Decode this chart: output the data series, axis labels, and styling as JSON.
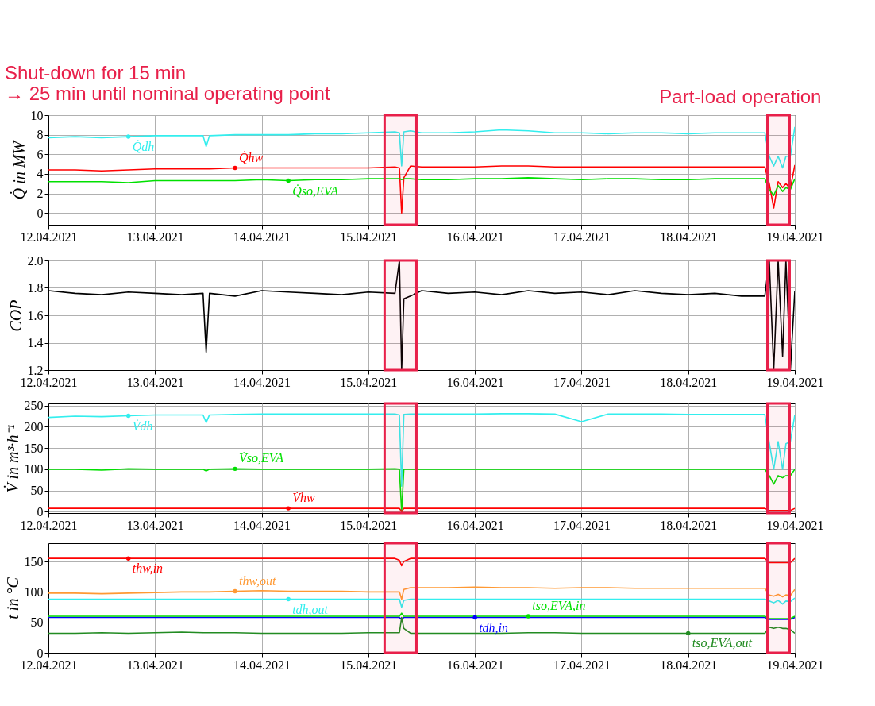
{
  "chart_data": [
    {
      "type": "line",
      "ylabel": "Q̇ in MW",
      "grid": true,
      "x": [
        "2021-04-12T00:00",
        "2021-04-12T06:00",
        "2021-04-12T12:00",
        "2021-04-12T18:00",
        "2021-04-13T00:00",
        "2021-04-13T06:00",
        "2021-04-13T10:48",
        "2021-04-13T11:30",
        "2021-04-13T12:15",
        "2021-04-13T18:00",
        "2021-04-14T00:00",
        "2021-04-14T06:00",
        "2021-04-14T12:00",
        "2021-04-14T18:00",
        "2021-04-15T00:00",
        "2021-04-15T06:00",
        "2021-04-15T07:00",
        "2021-04-15T07:30",
        "2021-04-15T08:00",
        "2021-04-15T09:30",
        "2021-04-15T12:00",
        "2021-04-15T18:00",
        "2021-04-16T00:00",
        "2021-04-16T06:00",
        "2021-04-16T12:00",
        "2021-04-16T18:00",
        "2021-04-17T00:00",
        "2021-04-17T06:00",
        "2021-04-17T12:00",
        "2021-04-17T18:00",
        "2021-04-18T00:00",
        "2021-04-18T06:00",
        "2021-04-18T12:00",
        "2021-04-18T17:15",
        "2021-04-18T18:15",
        "2021-04-18T19:15",
        "2021-04-18T20:15",
        "2021-04-18T21:15",
        "2021-04-18T22:00",
        "2021-04-18T23:00",
        "2021-04-19T00:00"
      ],
      "xlim": [
        "2021-04-12T00:00",
        "2021-04-19T00:00"
      ],
      "xticks": [
        {
          "value": "2021-04-12T00:00",
          "label": "12.04.2021"
        },
        {
          "value": "2021-04-13T00:00",
          "label": "13.04.2021"
        },
        {
          "value": "2021-04-14T00:00",
          "label": "14.04.2021"
        },
        {
          "value": "2021-04-15T00:00",
          "label": "15.04.2021"
        },
        {
          "value": "2021-04-16T00:00",
          "label": "16.04.2021"
        },
        {
          "value": "2021-04-17T00:00",
          "label": "17.04.2021"
        },
        {
          "value": "2021-04-18T00:00",
          "label": "18.04.2021"
        },
        {
          "value": "2021-04-19T00:00",
          "label": "19.04.2021"
        }
      ],
      "ylim": [
        -1.2,
        10
      ],
      "yticks": [
        0,
        2,
        4,
        6,
        8,
        10
      ],
      "series": [
        {
          "name": "Q̇dh",
          "color": "#33eeee",
          "values": [
            7.7,
            7.8,
            7.7,
            7.8,
            7.9,
            7.9,
            7.9,
            6.8,
            7.9,
            8.0,
            8.0,
            8.0,
            8.1,
            8.1,
            8.2,
            8.3,
            8.2,
            4.8,
            8.3,
            8.4,
            8.2,
            8.2,
            8.3,
            8.5,
            8.4,
            8.2,
            8.2,
            8.1,
            8.2,
            8.2,
            8.1,
            8.2,
            8.2,
            8.2,
            5.8,
            4.8,
            5.8,
            4.6,
            5.8,
            5.8,
            8.8
          ]
        },
        {
          "name": "Q̇hw",
          "color": "#ff0000",
          "values": [
            4.4,
            4.4,
            4.3,
            4.4,
            4.5,
            4.5,
            4.5,
            4.5,
            4.5,
            4.6,
            4.6,
            4.6,
            4.6,
            4.6,
            4.6,
            4.7,
            4.6,
            0.0,
            3.6,
            4.8,
            4.7,
            4.7,
            4.7,
            4.8,
            4.8,
            4.7,
            4.7,
            4.7,
            4.7,
            4.7,
            4.7,
            4.7,
            4.7,
            4.7,
            3.0,
            0.5,
            3.2,
            2.6,
            3.0,
            2.5,
            4.9
          ]
        },
        {
          "name": "Q̇so,EVA",
          "color": "#00e000",
          "values": [
            3.2,
            3.2,
            3.2,
            3.1,
            3.3,
            3.3,
            3.3,
            3.3,
            3.3,
            3.3,
            3.4,
            3.3,
            3.4,
            3.4,
            3.5,
            3.5,
            3.5,
            3.4,
            3.5,
            3.5,
            3.4,
            3.4,
            3.5,
            3.5,
            3.6,
            3.5,
            3.4,
            3.5,
            3.5,
            3.4,
            3.4,
            3.5,
            3.5,
            3.5,
            2.4,
            1.8,
            2.8,
            2.2,
            2.6,
            2.4,
            3.5
          ]
        }
      ],
      "bands": [
        {
          "axis": "x",
          "from": "2021-04-15T03:40",
          "to": "2021-04-15T10:50",
          "label": "Shut-down for 15 min\n→ 25 min until nominal operating point",
          "color": "#e8204a"
        },
        {
          "axis": "x",
          "from": "2021-04-18T17:50",
          "to": "2021-04-18T22:50",
          "label": "Part-load operation",
          "color": "#e8204a"
        }
      ]
    },
    {
      "type": "line",
      "ylabel": "COP",
      "grid": true,
      "x": [
        "2021-04-12T00:00",
        "2021-04-12T06:00",
        "2021-04-12T12:00",
        "2021-04-12T18:00",
        "2021-04-13T00:00",
        "2021-04-13T06:00",
        "2021-04-13T10:48",
        "2021-04-13T11:30",
        "2021-04-13T12:15",
        "2021-04-13T18:00",
        "2021-04-14T00:00",
        "2021-04-14T06:00",
        "2021-04-14T12:00",
        "2021-04-14T18:00",
        "2021-04-15T00:00",
        "2021-04-15T06:00",
        "2021-04-15T07:00",
        "2021-04-15T07:30",
        "2021-04-15T08:00",
        "2021-04-15T09:30",
        "2021-04-15T12:00",
        "2021-04-15T18:00",
        "2021-04-16T00:00",
        "2021-04-16T06:00",
        "2021-04-16T12:00",
        "2021-04-16T18:00",
        "2021-04-17T00:00",
        "2021-04-17T06:00",
        "2021-04-17T12:00",
        "2021-04-17T18:00",
        "2021-04-18T00:00",
        "2021-04-18T06:00",
        "2021-04-18T12:00",
        "2021-04-18T17:15",
        "2021-04-18T18:15",
        "2021-04-18T19:15",
        "2021-04-18T20:15",
        "2021-04-18T21:15",
        "2021-04-18T22:00",
        "2021-04-18T23:00",
        "2021-04-19T00:00"
      ],
      "xlim": [
        "2021-04-12T00:00",
        "2021-04-19T00:00"
      ],
      "xticks": [
        {
          "value": "2021-04-12T00:00",
          "label": "12.04.2021"
        },
        {
          "value": "2021-04-13T00:00",
          "label": "13.04.2021"
        },
        {
          "value": "2021-04-14T00:00",
          "label": "14.04.2021"
        },
        {
          "value": "2021-04-15T00:00",
          "label": "15.04.2021"
        },
        {
          "value": "2021-04-16T00:00",
          "label": "16.04.2021"
        },
        {
          "value": "2021-04-17T00:00",
          "label": "17.04.2021"
        },
        {
          "value": "2021-04-18T00:00",
          "label": "18.04.2021"
        },
        {
          "value": "2021-04-19T00:00",
          "label": "19.04.2021"
        }
      ],
      "ylim": [
        1.2,
        2.0
      ],
      "yticks": [
        1.2,
        1.4,
        1.6,
        1.8,
        {
          "value": 2.0,
          "label": "2.0"
        }
      ],
      "series": [
        {
          "color": "#000000",
          "values": [
            1.78,
            1.76,
            1.75,
            1.77,
            1.76,
            1.75,
            1.76,
            1.33,
            1.76,
            1.74,
            1.78,
            1.77,
            1.76,
            1.75,
            1.77,
            1.76,
            2.0,
            1.2,
            1.72,
            1.74,
            1.78,
            1.76,
            1.77,
            1.75,
            1.78,
            1.76,
            1.77,
            1.75,
            1.78,
            1.76,
            1.75,
            1.76,
            1.74,
            1.74,
            2.0,
            1.2,
            2.0,
            1.3,
            2.0,
            1.2,
            1.78
          ]
        }
      ],
      "bands": [
        {
          "axis": "x",
          "from": "2021-04-15T03:40",
          "to": "2021-04-15T10:50",
          "color": "#e8204a"
        },
        {
          "axis": "x",
          "from": "2021-04-18T17:50",
          "to": "2021-04-18T22:50",
          "color": "#e8204a"
        }
      ]
    },
    {
      "type": "line",
      "ylabel": "V̇ in m³·h⁻¹",
      "grid": true,
      "x": [
        "2021-04-12T00:00",
        "2021-04-12T06:00",
        "2021-04-12T12:00",
        "2021-04-12T18:00",
        "2021-04-13T00:00",
        "2021-04-13T06:00",
        "2021-04-13T10:48",
        "2021-04-13T11:30",
        "2021-04-13T12:15",
        "2021-04-13T18:00",
        "2021-04-14T00:00",
        "2021-04-14T06:00",
        "2021-04-14T12:00",
        "2021-04-14T18:00",
        "2021-04-15T00:00",
        "2021-04-15T06:00",
        "2021-04-15T07:00",
        "2021-04-15T07:30",
        "2021-04-15T08:00",
        "2021-04-15T09:30",
        "2021-04-15T12:00",
        "2021-04-15T18:00",
        "2021-04-16T00:00",
        "2021-04-16T06:00",
        "2021-04-16T12:00",
        "2021-04-16T18:00",
        "2021-04-17T00:00",
        "2021-04-17T06:00",
        "2021-04-17T12:00",
        "2021-04-17T18:00",
        "2021-04-18T00:00",
        "2021-04-18T06:00",
        "2021-04-18T12:00",
        "2021-04-18T17:15",
        "2021-04-18T18:15",
        "2021-04-18T19:15",
        "2021-04-18T20:15",
        "2021-04-18T21:15",
        "2021-04-18T22:00",
        "2021-04-18T23:00",
        "2021-04-19T00:00"
      ],
      "xlim": [
        "2021-04-12T00:00",
        "2021-04-19T00:00"
      ],
      "xticks": [
        {
          "value": "2021-04-12T00:00",
          "label": "12.04.2021"
        },
        {
          "value": "2021-04-13T00:00",
          "label": "13.04.2021"
        },
        {
          "value": "2021-04-14T00:00",
          "label": "14.04.2021"
        },
        {
          "value": "2021-04-15T00:00",
          "label": "15.04.2021"
        },
        {
          "value": "2021-04-16T00:00",
          "label": "16.04.2021"
        },
        {
          "value": "2021-04-17T00:00",
          "label": "17.04.2021"
        },
        {
          "value": "2021-04-18T00:00",
          "label": "18.04.2021"
        },
        {
          "value": "2021-04-19T00:00",
          "label": "19.04.2021"
        }
      ],
      "ylim": [
        -3,
        255
      ],
      "yticks": [
        0,
        50,
        100,
        150,
        200,
        250
      ],
      "series": [
        {
          "name": "V̇dh",
          "color": "#33eeee",
          "values": [
            222,
            225,
            224,
            226,
            228,
            228,
            228,
            210,
            228,
            229,
            230,
            230,
            230,
            230,
            230,
            230,
            228,
            60,
            229,
            230,
            230,
            230,
            230,
            231,
            231,
            230,
            212,
            230,
            230,
            230,
            229,
            229,
            229,
            229,
            162,
            100,
            165,
            100,
            160,
            165,
            228
          ]
        },
        {
          "name": "V̇so,EVA",
          "color": "#00e000",
          "values": [
            100,
            100,
            98,
            101,
            100,
            100,
            100,
            96,
            100,
            101,
            100,
            100,
            100,
            100,
            100,
            101,
            100,
            0,
            100,
            100,
            100,
            100,
            100,
            100,
            100,
            100,
            100,
            100,
            100,
            100,
            100,
            100,
            100,
            100,
            85,
            65,
            85,
            80,
            85,
            85,
            100
          ]
        },
        {
          "name": "V̇hw",
          "color": "#ff0000",
          "values": [
            8,
            8,
            8,
            8,
            8,
            8,
            8,
            8,
            8,
            8,
            8,
            8,
            8,
            8,
            8,
            8,
            8,
            0,
            8,
            8,
            8,
            8,
            8,
            8,
            8,
            8,
            8,
            8,
            8,
            8,
            8,
            8,
            8,
            8,
            3,
            3,
            3,
            3,
            3,
            3,
            8
          ]
        }
      ],
      "bands": [
        {
          "axis": "x",
          "from": "2021-04-15T03:40",
          "to": "2021-04-15T10:50",
          "color": "#e8204a"
        },
        {
          "axis": "x",
          "from": "2021-04-18T17:50",
          "to": "2021-04-18T22:50",
          "color": "#e8204a"
        }
      ]
    },
    {
      "type": "line",
      "ylabel": "t in °C",
      "grid": true,
      "x": [
        "2021-04-12T00:00",
        "2021-04-12T06:00",
        "2021-04-12T12:00",
        "2021-04-12T18:00",
        "2021-04-13T00:00",
        "2021-04-13T06:00",
        "2021-04-13T10:48",
        "2021-04-13T11:30",
        "2021-04-13T12:15",
        "2021-04-13T18:00",
        "2021-04-14T00:00",
        "2021-04-14T06:00",
        "2021-04-14T12:00",
        "2021-04-14T18:00",
        "2021-04-15T00:00",
        "2021-04-15T06:00",
        "2021-04-15T07:00",
        "2021-04-15T07:30",
        "2021-04-15T08:00",
        "2021-04-15T09:30",
        "2021-04-15T12:00",
        "2021-04-15T18:00",
        "2021-04-16T00:00",
        "2021-04-16T06:00",
        "2021-04-16T12:00",
        "2021-04-16T18:00",
        "2021-04-17T00:00",
        "2021-04-17T06:00",
        "2021-04-17T12:00",
        "2021-04-17T18:00",
        "2021-04-18T00:00",
        "2021-04-18T06:00",
        "2021-04-18T12:00",
        "2021-04-18T17:15",
        "2021-04-18T18:15",
        "2021-04-18T19:15",
        "2021-04-18T20:15",
        "2021-04-18T21:15",
        "2021-04-18T22:00",
        "2021-04-18T23:00",
        "2021-04-19T00:00"
      ],
      "xlim": [
        "2021-04-12T00:00",
        "2021-04-19T00:00"
      ],
      "xticks": [
        {
          "value": "2021-04-12T00:00",
          "label": "12.04.2021"
        },
        {
          "value": "2021-04-13T00:00",
          "label": "13.04.2021"
        },
        {
          "value": "2021-04-14T00:00",
          "label": "14.04.2021"
        },
        {
          "value": "2021-04-15T00:00",
          "label": "15.04.2021"
        },
        {
          "value": "2021-04-16T00:00",
          "label": "16.04.2021"
        },
        {
          "value": "2021-04-17T00:00",
          "label": "17.04.2021"
        },
        {
          "value": "2021-04-18T00:00",
          "label": "18.04.2021"
        },
        {
          "value": "2021-04-19T00:00",
          "label": "19.04.2021"
        }
      ],
      "ylim": [
        0,
        180
      ],
      "yticks": [
        0,
        50,
        100,
        150
      ],
      "series": [
        {
          "name": "thw,in",
          "color": "#ff0000",
          "values": [
            155,
            155,
            155,
            155,
            155,
            155,
            155,
            155,
            155,
            155,
            155,
            155,
            155,
            155,
            155,
            155,
            152,
            143,
            150,
            155,
            155,
            155,
            155,
            155,
            155,
            155,
            155,
            155,
            155,
            155,
            155,
            155,
            155,
            155,
            148,
            148,
            148,
            148,
            148,
            148,
            155
          ]
        },
        {
          "name": "thw,out",
          "color": "#ff9933",
          "values": [
            98,
            98,
            97,
            98,
            99,
            100,
            100,
            100,
            100,
            101,
            102,
            101,
            101,
            101,
            100,
            100,
            100,
            88,
            104,
            107,
            107,
            107,
            108,
            107,
            107,
            106,
            107,
            107,
            106,
            106,
            106,
            106,
            106,
            106,
            95,
            93,
            96,
            92,
            95,
            94,
            104
          ]
        },
        {
          "name": "tdh,out",
          "color": "#33eeee",
          "values": [
            88,
            88,
            88,
            88,
            88,
            88,
            88,
            88,
            88,
            88,
            88,
            88,
            88,
            88,
            88,
            88,
            88,
            75,
            86,
            88,
            88,
            88,
            88,
            88,
            88,
            88,
            88,
            88,
            88,
            88,
            88,
            88,
            88,
            88,
            85,
            82,
            86,
            80,
            85,
            84,
            90
          ]
        },
        {
          "name": "tdh,in",
          "color": "#0000ff",
          "values": [
            58,
            58,
            58,
            58,
            58,
            58,
            58,
            58,
            58,
            58,
            58,
            58,
            58,
            58,
            58,
            58,
            58,
            55,
            58,
            58,
            58,
            58,
            58,
            58,
            58,
            58,
            58,
            58,
            58,
            58,
            58,
            58,
            58,
            58,
            55,
            55,
            55,
            55,
            55,
            55,
            58
          ]
        },
        {
          "name": "tso,EVA,in",
          "color": "#00e000",
          "values": [
            60,
            60,
            60,
            60,
            60,
            60,
            60,
            60,
            60,
            60,
            60,
            60,
            60,
            60,
            60,
            60,
            60,
            65,
            60,
            60,
            60,
            60,
            60,
            60,
            60,
            60,
            60,
            60,
            60,
            60,
            60,
            60,
            60,
            60,
            56,
            56,
            56,
            56,
            56,
            56,
            60
          ]
        },
        {
          "name": "tso,EVA,out",
          "color": "#228b22",
          "values": [
            32,
            32,
            33,
            32,
            33,
            34,
            33,
            33,
            33,
            33,
            32,
            32,
            32,
            32,
            33,
            33,
            33,
            58,
            40,
            32,
            32,
            32,
            32,
            32,
            33,
            33,
            32,
            32,
            32,
            32,
            32,
            32,
            32,
            32,
            42,
            40,
            42,
            40,
            40,
            38,
            32
          ]
        }
      ],
      "bands": [
        {
          "axis": "x",
          "from": "2021-04-15T03:40",
          "to": "2021-04-15T10:50",
          "color": "#e8204a"
        },
        {
          "axis": "x",
          "from": "2021-04-18T17:50",
          "to": "2021-04-18T22:50",
          "color": "#e8204a"
        }
      ]
    }
  ]
}
